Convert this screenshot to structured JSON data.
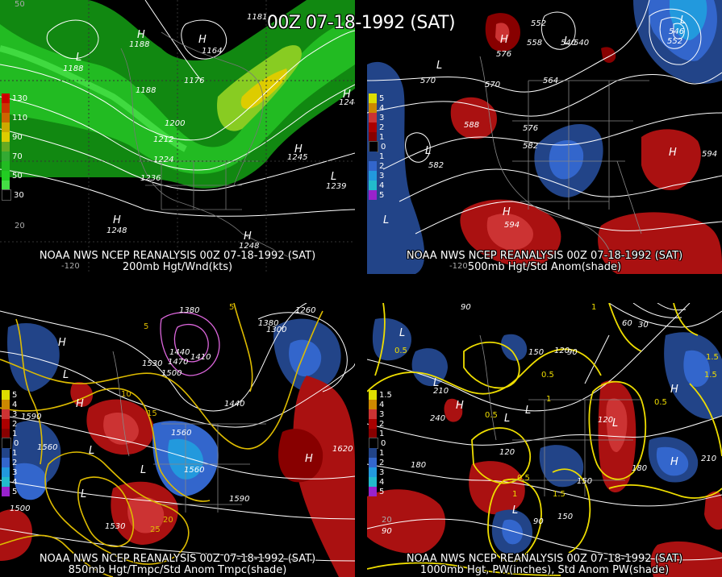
{
  "main_title": "00Z 07-18-1992 (SAT)",
  "panels": [
    {
      "id": "200mb",
      "caption_line1": "NOAA NWS NCEP REANALYSIS 00Z 07-18-1992 (SAT)",
      "caption_line2": "200mb Hgt/Wnd(kts)",
      "legend": [
        "130",
        "110",
        "90",
        "70",
        "50",
        "30"
      ],
      "legend_colors": [
        "#cc0000",
        "#cc6600",
        "#ddcc00",
        "#33aa33",
        "#22cc22",
        "#44dd44"
      ],
      "contour_labels": [
        "1188",
        "1164",
        "1176",
        "1188",
        "1200",
        "1212",
        "1224",
        "1236",
        "1248",
        "1248",
        "1245",
        "1239",
        "1244",
        "1164",
        "1181",
        "1188"
      ],
      "centers": [
        "H",
        "L",
        "H",
        "H",
        "H",
        "L",
        "H",
        "H"
      ],
      "axis_labels": [
        "20",
        "-120",
        "50"
      ]
    },
    {
      "id": "500mb",
      "caption_line1": "NOAA NWS NCEP REANALYSIS 00Z 07-18-1992 (SAT)",
      "caption_line2": "500mb Hgt/Std Anom(shade)",
      "legend": [
        "5",
        "4",
        "3",
        "2",
        "1",
        "0",
        "1",
        "2",
        "3",
        "4",
        "5"
      ],
      "legend_colors": [
        "#dddd00",
        "#cc8800",
        "#cc3333",
        "#aa0000",
        "#880000",
        "#000000",
        "#224488",
        "#3366cc",
        "#2299dd",
        "#22bbcc",
        "#9922cc"
      ],
      "contour_labels": [
        "552",
        "564",
        "570",
        "570",
        "576",
        "582",
        "588",
        "594",
        "594",
        "546",
        "540",
        "552",
        "576",
        "570",
        "582",
        "594",
        "558",
        "540"
      ],
      "centers": [
        "H",
        "L",
        "L",
        "L",
        "H",
        "H",
        "L",
        "L",
        "H"
      ],
      "axis_labels": [
        "-120"
      ]
    },
    {
      "id": "850mb",
      "caption_line1": "NOAA NWS NCEP REANALYSIS 00Z 07-18-1992 (SAT)",
      "caption_line2": "850mb Hgt/Tmpc/Std Anom Tmpc(shade)",
      "legend": [
        "5",
        "4",
        "3",
        "2",
        "1",
        "0",
        "1",
        "2",
        "3",
        "4",
        "5"
      ],
      "legend_colors": [
        "#dddd00",
        "#cc8800",
        "#cc3333",
        "#aa0000",
        "#880000",
        "#000000",
        "#224488",
        "#3366cc",
        "#2299dd",
        "#22bbcc",
        "#9922cc"
      ],
      "contour_labels": [
        "1380",
        "1410",
        "1440",
        "1470",
        "1500",
        "1530",
        "1560",
        "1590",
        "1560",
        "1530",
        "1590",
        "1620",
        "1500",
        "1560",
        "1260",
        "1300",
        "1440",
        "1380"
      ],
      "temp_labels": [
        "5",
        "10",
        "15",
        "20",
        "25",
        "10",
        "5"
      ],
      "centers": [
        "H",
        "L",
        "H",
        "L",
        "L",
        "L",
        "H"
      ]
    },
    {
      "id": "1000mb",
      "caption_line1": "NOAA NWS NCEP REANALYSIS 00Z 07-18-1992 (SAT)",
      "caption_line2": "1000mb Hgt, PW(inches), Std Anom PW(shade)",
      "legend": [
        "1.5",
        "4",
        "3",
        "2",
        "1",
        "0",
        "1",
        "2",
        "3",
        "4",
        "5"
      ],
      "legend_colors": [
        "#dddd00",
        "#cc8800",
        "#cc3333",
        "#aa0000",
        "#880000",
        "#000000",
        "#224488",
        "#3366cc",
        "#2299dd",
        "#22bbcc",
        "#9922cc"
      ],
      "contour_labels": [
        "120",
        "150",
        "180",
        "210",
        "240",
        "90",
        "120",
        "150",
        "180",
        "210",
        "60",
        "30",
        "90",
        "120",
        "150",
        "180",
        "210",
        "240",
        "90"
      ],
      "pw_labels": [
        "0.5",
        "1",
        "1.5",
        "0.5",
        "0.5",
        "1",
        "1.5",
        "0.5",
        "1",
        "0.5",
        "1.5"
      ],
      "centers": [
        "H",
        "L",
        "L",
        "L",
        "H",
        "L",
        "L",
        "L",
        "H"
      ],
      "axis_labels": [
        "20",
        "90",
        "90"
      ]
    }
  ]
}
